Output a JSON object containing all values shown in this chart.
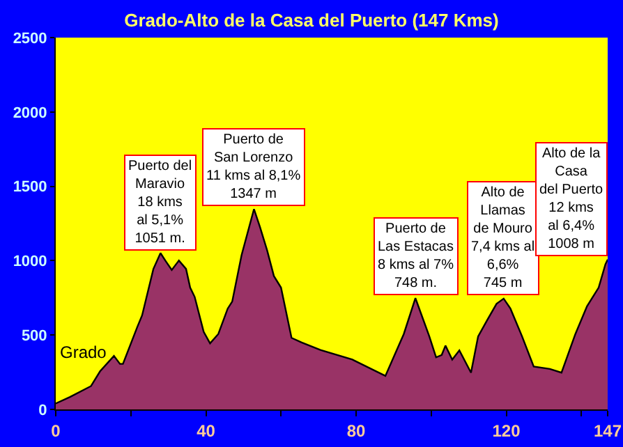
{
  "chart_data": {
    "type": "area",
    "title": "Grado-Alto de la Casa del Puerto (147 Kms)",
    "x": [
      0,
      3.8,
      9.4,
      11.8,
      15.5,
      17.1,
      17.9,
      21.7,
      23,
      26,
      27.9,
      29.3,
      30.9,
      32.8,
      34.7,
      35.8,
      37,
      39.4,
      41.1,
      43.3,
      45.8,
      47,
      49.5,
      52.8,
      54.4,
      56.3,
      58.1,
      60,
      62.8,
      65.5,
      70.5,
      79,
      87.8,
      92.7,
      95.8,
      99.5,
      101.3,
      102.8,
      103.8,
      105.6,
      107.5,
      110.6,
      112.5,
      114.9,
      117.4,
      119.3,
      121.1,
      124.2,
      127.3,
      131.6,
      134.7,
      138.4,
      141.5,
      144.6,
      146.4,
      147
    ],
    "series": [
      {
        "color": "#993366",
        "values": [
          40,
          84,
          157,
          256,
          360,
          306,
          306,
          553,
          632,
          944,
          1051,
          997,
          938,
          1001,
          945,
          819,
          757,
          522,
          444,
          507,
          678,
          725,
          1038,
          1347,
          1226,
          1069,
          897,
          819,
          481,
          450,
          400,
          335,
          225,
          507,
          748,
          491,
          350,
          366,
          429,
          335,
          397,
          247,
          491,
          600,
          710,
          745,
          678,
          491,
          288,
          272,
          247,
          507,
          694,
          819,
          975,
          1008
        ]
      }
    ],
    "xlim": [
      0,
      147
    ],
    "xticks": [
      0,
      {
        "value": 20,
        "label": null
      },
      40,
      {
        "value": 60,
        "label": null
      },
      80,
      {
        "value": 100,
        "label": null
      },
      120,
      {
        "value": 140,
        "label": null
      },
      147
    ],
    "ylim": [
      0,
      2500
    ],
    "yticks": [
      0,
      500,
      1000,
      1500,
      2000,
      2500
    ],
    "grid": false,
    "annotations": [
      "Grado",
      {
        "text": "Puerto del\nMaravio\n18 kms\nal 5,1%\n1051 m.",
        "x": 27.9,
        "y": 1051
      },
      {
        "text": "Puerto de\nSan Lorenzo\n11 kms al 8,1%\n1347 m",
        "x": 52.8,
        "y": 1347
      },
      {
        "text": "Puerto de\nLas Estacas\n8 kms al 7%\n748 m.",
        "x": 95.8,
        "y": 748
      },
      {
        "text": "Alto de\nLlamas\nde Mouro\n7,4 kms al\n6,6%\n745 m",
        "x": 119.3,
        "y": 745
      },
      {
        "text": "Alto de la\nCasa\ndel Puerto\n12 kms\nal 6,4%\n1008 m",
        "x": 147,
        "y": 1008
      }
    ]
  }
}
